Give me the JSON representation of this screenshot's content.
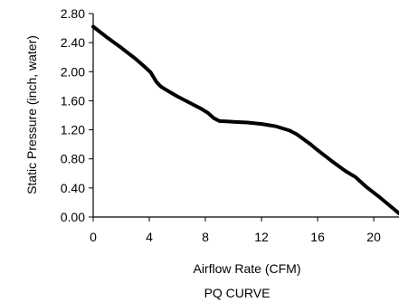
{
  "chart_data": {
    "type": "line",
    "title": "PQ CURVE",
    "xlabel": "Airflow Rate (CFM)",
    "ylabel": "Static Pressure (inch, water)",
    "xlim": [
      0,
      21.8
    ],
    "ylim": [
      0,
      2.8
    ],
    "x_ticks": [
      0,
      4,
      8,
      12,
      16,
      20
    ],
    "y_ticks": [
      0.0,
      0.4,
      0.8,
      1.2,
      1.6,
      2.0,
      2.4,
      2.8
    ],
    "x_tick_labels": [
      "0",
      "4",
      "8",
      "12",
      "16",
      "20"
    ],
    "y_tick_labels": [
      "0.00",
      "0.40",
      "0.80",
      "1.20",
      "1.60",
      "2.00",
      "2.40",
      "2.80"
    ],
    "grid": false,
    "legend": "none",
    "line_color": "#000000",
    "series": [
      {
        "x": [
          0,
          1,
          2,
          3,
          3.6,
          4.1,
          4.5,
          4.8,
          5.2,
          6,
          7,
          7.7,
          8.2,
          8.6,
          9,
          10,
          11,
          12,
          13,
          14,
          14.5,
          15,
          15.5,
          16,
          17,
          18,
          18.7,
          19.5,
          20.5,
          21.8
        ],
        "y": [
          2.62,
          2.47,
          2.33,
          2.18,
          2.08,
          1.99,
          1.86,
          1.8,
          1.75,
          1.66,
          1.56,
          1.49,
          1.43,
          1.36,
          1.32,
          1.31,
          1.3,
          1.28,
          1.25,
          1.19,
          1.14,
          1.07,
          1.0,
          0.92,
          0.77,
          0.63,
          0.55,
          0.41,
          0.26,
          0.05
        ]
      }
    ]
  }
}
